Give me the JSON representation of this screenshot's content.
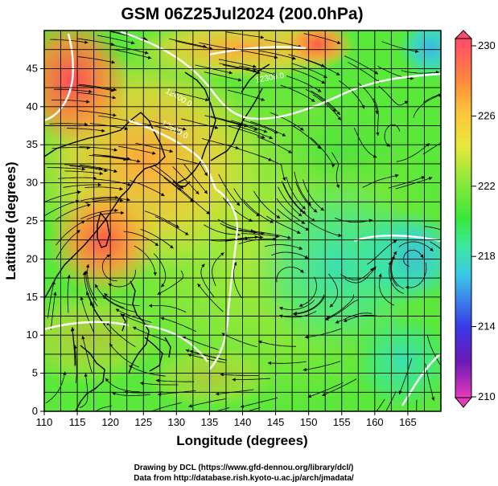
{
  "title": "GSM 06Z25Jul2024 (200.0hPa)",
  "xlabel": "Longitude (degrees)",
  "ylabel": "Latitude  (degrees)",
  "credit_line1": "Drawing by DCL (https://www.gfd-dennou.org/library/dcl/)",
  "credit_line2": "Data from http://database.rish.kyoto-u.ac.jp/arch/jmadata/",
  "map": {
    "lon_range": [
      110,
      170
    ],
    "lat_range": [
      0,
      50
    ],
    "lon_ticks": [
      "110",
      "115",
      "120",
      "125",
      "130",
      "135",
      "140",
      "145",
      "150",
      "155",
      "160",
      "165"
    ],
    "lat_ticks": [
      "0",
      "5",
      "10",
      "15",
      "20",
      "25",
      "30",
      "35",
      "40",
      "45"
    ],
    "contour_labels": [
      "12400.0",
      "12500.0",
      "12300.0"
    ]
  },
  "colorbar": {
    "labels": [
      "230",
      "226",
      "222",
      "218",
      "214",
      "210"
    ],
    "range": [
      210,
      230
    ],
    "colors": [
      "#ff4a6a",
      "#ff8a3a",
      "#ffc23a",
      "#e8e83a",
      "#8ae83a",
      "#3ae83a",
      "#3ae8a0",
      "#3ac8e8",
      "#3a8ae8",
      "#3a3ae8",
      "#6a1ab8",
      "#e83ab8"
    ]
  }
}
